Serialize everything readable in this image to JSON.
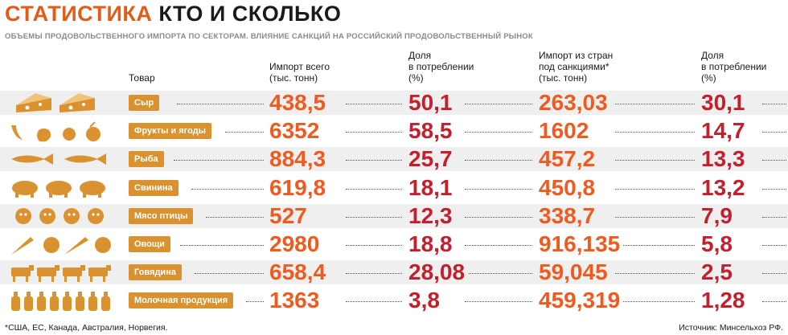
{
  "title_part1": "СТАТИСТИКА",
  "title_part2": "КТО И СКОЛЬКО",
  "subtitle": "ОБЪЕМЫ ПРОДОВОЛЬСТВЕННОГО ИМПОРТА ПО СЕКТОРАМ. ВЛИЯНИЕ САНКЦИЙ НА РОССИЙСКИЙ ПРОДОВОЛЬСТВЕННЫЙ РЫНОК",
  "headers": {
    "product": "Товар",
    "import_total": "Импорт всего\n(тыс. тонн)",
    "share1": "Доля\nв потреблении\n(%)",
    "import_sanctions": "Импорт из стран\nпод санкциями*\n(тыс. тонн)",
    "share2": "Доля\nв потреблении\n(%)"
  },
  "footnote": "*США, ЕС, Канада, Австралия, Норвегия.",
  "source": "Источник: Минсельхоз РФ.",
  "colors": {
    "orange": "#ef5a1f",
    "red": "#c2202c",
    "label_bg": "#d9922f",
    "icon": "#d9922f"
  },
  "chart_data": {
    "type": "table",
    "columns": [
      "Товар",
      "Импорт всего (тыс. тонн)",
      "Доля в потреблении (%)",
      "Импорт из стран под санкциями* (тыс. тонн)",
      "Доля в потреблении (%)"
    ],
    "rows": [
      {
        "product": "Сыр",
        "icon": "cheese-icon",
        "import_total": "438,5",
        "share_total": "50,1",
        "import_sanctions": "263,03",
        "share_sanctions": "30,1"
      },
      {
        "product": "Фрукты и ягоды",
        "icon": "fruit-icon",
        "import_total": "6352",
        "share_total": "58,5",
        "import_sanctions": "1602",
        "share_sanctions": "14,7"
      },
      {
        "product": "Рыба",
        "icon": "fish-icon",
        "import_total": "884,3",
        "share_total": "25,7",
        "import_sanctions": "457,2",
        "share_sanctions": "13,3"
      },
      {
        "product": "Свинина",
        "icon": "pig-icon",
        "import_total": "619,8",
        "share_total": "18,1",
        "import_sanctions": "450,8",
        "share_sanctions": "13,2"
      },
      {
        "product": "Мясо птицы",
        "icon": "chicken-icon",
        "import_total": "527",
        "share_total": "12,3",
        "import_sanctions": "338,7",
        "share_sanctions": "7,9"
      },
      {
        "product": "Овощи",
        "icon": "vegetable-icon",
        "import_total": "2980",
        "share_total": "18,8",
        "import_sanctions": "916,135",
        "share_sanctions": "5,8"
      },
      {
        "product": "Говядина",
        "icon": "cow-icon",
        "import_total": "658,4",
        "share_total": "28,08",
        "import_sanctions": "59,045",
        "share_sanctions": "2,5"
      },
      {
        "product": "Молочная продукция",
        "icon": "bottle-icon",
        "import_total": "1363",
        "share_total": "3,8",
        "import_sanctions": "459,319",
        "share_sanctions": "1,28"
      }
    ]
  }
}
